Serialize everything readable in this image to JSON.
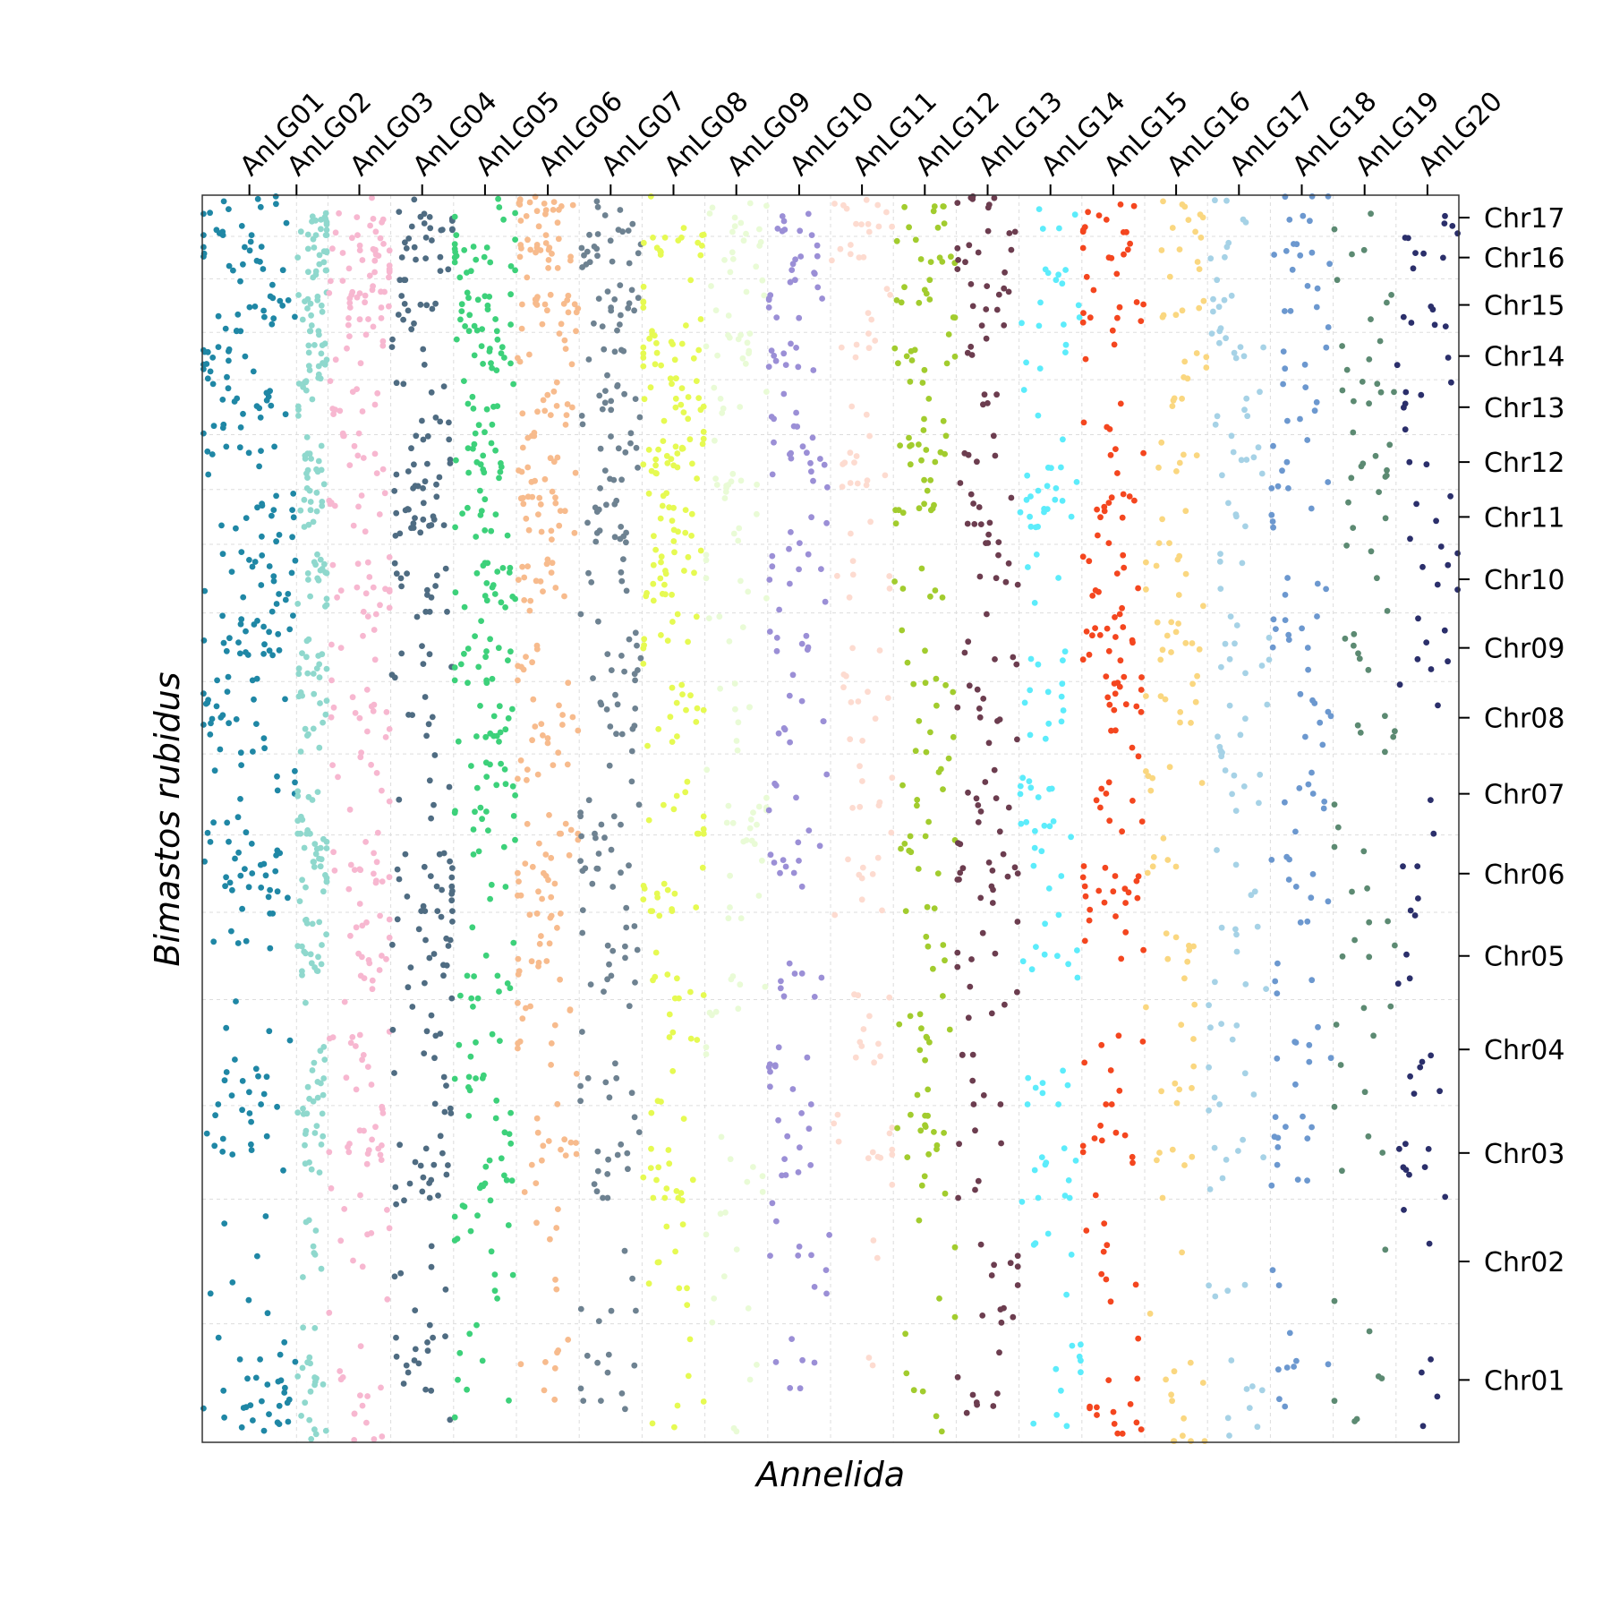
{
  "chart_data": {
    "type": "scatter",
    "title": "",
    "xlabel": "Annelida",
    "ylabel": "Bimastos rubidus",
    "x_groups": [
      "AnLG01",
      "AnLG02",
      "AnLG03",
      "AnLG04",
      "AnLG05",
      "AnLG06",
      "AnLG07",
      "AnLG08",
      "AnLG09",
      "AnLG10",
      "AnLG11",
      "AnLG12",
      "AnLG13",
      "AnLG14",
      "AnLG15",
      "AnLG16",
      "AnLG17",
      "AnLG18",
      "AnLG19",
      "AnLG20"
    ],
    "x_group_tick_positions": [
      0.75,
      1.5,
      2.5,
      3.5,
      4.5,
      5.5,
      6.5,
      7.5,
      8.5,
      9.5,
      10.5,
      11.5,
      12.5,
      13.5,
      14.5,
      15.5,
      16.5,
      17.5,
      18.5,
      19.5
    ],
    "x_group_edges": [
      0,
      1.5,
      2,
      3,
      4,
      5,
      6,
      7,
      8,
      9,
      10,
      11,
      12,
      13,
      14,
      15,
      16,
      17,
      18,
      19,
      20
    ],
    "y_groups": [
      "Chr01",
      "Chr02",
      "Chr03",
      "Chr04",
      "Chr05",
      "Chr06",
      "Chr07",
      "Chr08",
      "Chr09",
      "Chr10",
      "Chr11",
      "Chr12",
      "Chr13",
      "Chr14",
      "Chr15",
      "Chr16",
      "Chr17"
    ],
    "y_group_tick_positions": [
      0.5,
      1.45,
      2.32,
      3.15,
      3.9,
      4.56,
      5.2,
      5.81,
      6.37,
      6.92,
      7.42,
      7.86,
      8.3,
      8.71,
      9.12,
      9.5,
      9.82
    ],
    "y_group_edges": [
      0,
      0.95,
      1.95,
      2.7,
      3.55,
      4.25,
      4.87,
      5.52,
      6.1,
      6.65,
      7.2,
      7.64,
      8.08,
      8.52,
      8.9,
      9.33,
      9.67,
      10
    ],
    "xlim": [
      0,
      20
    ],
    "ylim": [
      0,
      10
    ],
    "grid": true,
    "point_density": [
      [
        30,
        7,
        14,
        16,
        7,
        28,
        13,
        22,
        28,
        20,
        16,
        9,
        20,
        16,
        20,
        14,
        16
      ],
      [
        20,
        8,
        16,
        14,
        20,
        22,
        14,
        14,
        14,
        18,
        12,
        16,
        10,
        16,
        16,
        16,
        16
      ],
      [
        14,
        10,
        20,
        14,
        18,
        16,
        9,
        14,
        8,
        16,
        10,
        9,
        12,
        7,
        24,
        24,
        10
      ],
      [
        16,
        8,
        20,
        12,
        18,
        22,
        6,
        6,
        9,
        14,
        20,
        18,
        8,
        4,
        14,
        12,
        16
      ],
      [
        8,
        14,
        16,
        14,
        12,
        7,
        20,
        16,
        16,
        20,
        12,
        16,
        12,
        14,
        20,
        18,
        6
      ],
      [
        8,
        6,
        14,
        14,
        18,
        18,
        14,
        14,
        8,
        16,
        20,
        14,
        14,
        7,
        20,
        20,
        20
      ],
      [
        10,
        6,
        14,
        10,
        14,
        16,
        10,
        12,
        14,
        6,
        16,
        12,
        14,
        6,
        16,
        14,
        10
      ],
      [
        6,
        10,
        16,
        8,
        10,
        14,
        12,
        14,
        10,
        20,
        16,
        24,
        16,
        20,
        8,
        12,
        4
      ],
      [
        4,
        8,
        6,
        6,
        6,
        8,
        12,
        8,
        4,
        6,
        6,
        10,
        6,
        12,
        6,
        8,
        10
      ],
      [
        6,
        10,
        10,
        10,
        8,
        10,
        6,
        8,
        8,
        10,
        4,
        14,
        6,
        10,
        10,
        8,
        8
      ],
      [
        2,
        2,
        12,
        8,
        4,
        8,
        8,
        8,
        4,
        6,
        2,
        12,
        2,
        6,
        4,
        6,
        12
      ],
      [
        6,
        4,
        16,
        12,
        6,
        12,
        8,
        10,
        4,
        6,
        10,
        14,
        6,
        10,
        10,
        8,
        8
      ],
      [
        8,
        12,
        6,
        10,
        8,
        16,
        10,
        10,
        6,
        6,
        12,
        6,
        4,
        4,
        10,
        8,
        10
      ],
      [
        10,
        6,
        10,
        8,
        10,
        6,
        14,
        10,
        4,
        4,
        14,
        8,
        2,
        4,
        8,
        4,
        4
      ],
      [
        14,
        8,
        10,
        8,
        6,
        16,
        10,
        14,
        18,
        10,
        12,
        4,
        4,
        2,
        10,
        8,
        10
      ],
      [
        12,
        2,
        6,
        10,
        8,
        6,
        6,
        8,
        12,
        8,
        4,
        6,
        4,
        6,
        6,
        6,
        8
      ],
      [
        8,
        4,
        8,
        10,
        8,
        4,
        8,
        8,
        10,
        4,
        4,
        8,
        6,
        8,
        8,
        4,
        4
      ],
      [
        8,
        2,
        12,
        8,
        6,
        8,
        8,
        8,
        10,
        4,
        4,
        8,
        6,
        4,
        6,
        8,
        6
      ],
      [
        6,
        2,
        4,
        6,
        6,
        4,
        2,
        6,
        6,
        4,
        4,
        8,
        8,
        4,
        4,
        2,
        2
      ],
      [
        4,
        2,
        8,
        6,
        4,
        4,
        2,
        2,
        6,
        6,
        4,
        2,
        6,
        2,
        6,
        6,
        4
      ]
    ],
    "series_colors": [
      "#1f87a5",
      "#8fd8cd",
      "#f7b7d0",
      "#4f6c82",
      "#3dd17a",
      "#f7bb8d",
      "#6e8291",
      "#e6fa52",
      "#e9fbd6",
      "#9b8fd6",
      "#fddbd0",
      "#a2cc2e",
      "#6c3d4f",
      "#5cecfb",
      "#f4461f",
      "#fad780",
      "#a6d2e6",
      "#6c98cf",
      "#5c8a72",
      "#2b2f6b"
    ],
    "grid_color": "#dddddd"
  }
}
